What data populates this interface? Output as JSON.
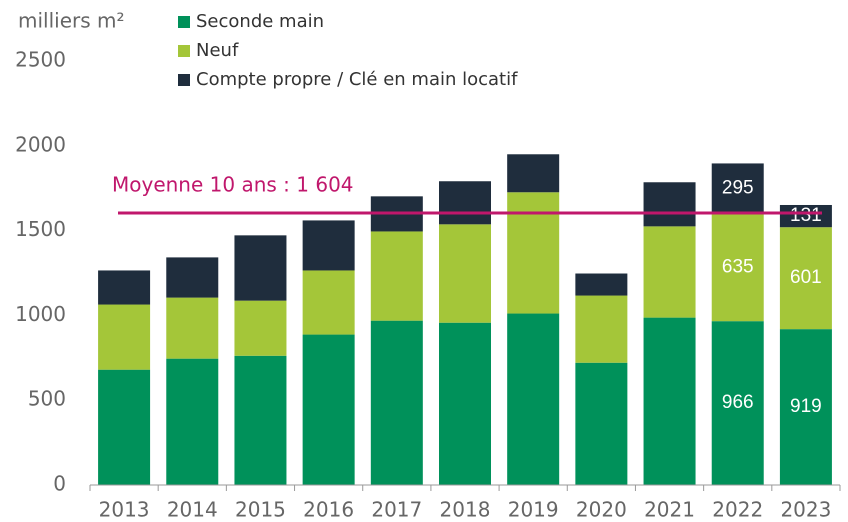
{
  "chart_data": {
    "type": "stacked-bar",
    "y_label": "milliers m²",
    "categories": [
      "2013",
      "2014",
      "2015",
      "2016",
      "2017",
      "2018",
      "2019",
      "2020",
      "2021",
      "2022",
      "2023"
    ],
    "series": [
      {
        "name": "Seconde main",
        "color": "#00915a",
        "values": [
          680,
          745,
          762,
          887,
          969,
          957,
          1011,
          721,
          987,
          966,
          919
        ],
        "value_labels": [
          null,
          null,
          null,
          null,
          null,
          null,
          null,
          null,
          null,
          "966",
          "919"
        ]
      },
      {
        "name": "Neuf",
        "color": "#a4c639",
        "values": [
          384,
          360,
          325,
          378,
          526,
          580,
          715,
          396,
          538,
          635,
          601
        ],
        "value_labels": [
          null,
          null,
          null,
          null,
          null,
          null,
          null,
          null,
          null,
          "635",
          "601"
        ]
      },
      {
        "name": "Compte propre / Clé en main locatif",
        "color": "#1f2d3d",
        "values": [
          201,
          237,
          385,
          295,
          207,
          254,
          224,
          130,
          260,
          295,
          131
        ],
        "value_labels": [
          null,
          null,
          null,
          null,
          null,
          null,
          null,
          null,
          null,
          "295",
          "131"
        ]
      }
    ],
    "average": {
      "value": 1604,
      "label": "Moyenne 10 ans : 1 604",
      "color": "#c0176c"
    },
    "ylim": [
      0,
      2500
    ],
    "yticks": [
      0,
      500,
      1000,
      1500,
      2000,
      2500
    ],
    "grid": false
  }
}
